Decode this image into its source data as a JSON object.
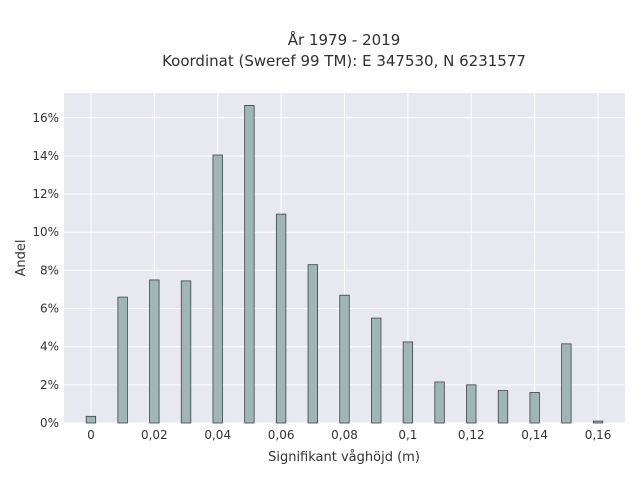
{
  "chart_data": {
    "type": "bar",
    "title_line1": "År 1979 - 2019",
    "title_line2": "Koordinat (Sweref 99 TM): E 347530, N 6231577",
    "xlabel": "Signifikant våghöjd (m)",
    "ylabel": "Andel",
    "x": [
      0,
      0.01,
      0.02,
      0.03,
      0.04,
      0.05,
      0.06,
      0.07,
      0.08,
      0.09,
      0.1,
      0.11,
      0.12,
      0.13,
      0.14,
      0.15,
      0.16
    ],
    "values": [
      0.35,
      6.6,
      7.5,
      7.45,
      14.05,
      16.65,
      10.95,
      8.3,
      6.7,
      5.5,
      4.25,
      2.15,
      2.0,
      1.7,
      1.6,
      4.15,
      0.1
    ],
    "xlim": [
      -0.0085,
      0.1685
    ],
    "ylim": [
      0,
      17.3
    ],
    "xticks": [
      0,
      0.02,
      0.04,
      0.06,
      0.08,
      0.1,
      0.12,
      0.14,
      0.16
    ],
    "xtick_labels": [
      "0",
      "0,02",
      "0,04",
      "0,06",
      "0,08",
      "0,1",
      "0,12",
      "0,14",
      "0,16"
    ],
    "yticks": [
      0,
      2,
      4,
      6,
      8,
      10,
      12,
      14,
      16
    ],
    "ytick_labels": [
      "0%",
      "2%",
      "4%",
      "6%",
      "8%",
      "10%",
      "12%",
      "14%",
      "16%"
    ],
    "bar_width": 0.003,
    "grid": true,
    "colors": {
      "bar_fill": "#9fb6b7",
      "bar_stroke": "#3a4444",
      "plot_bg": "#e8e8f0",
      "grid": "#ffffff"
    }
  }
}
